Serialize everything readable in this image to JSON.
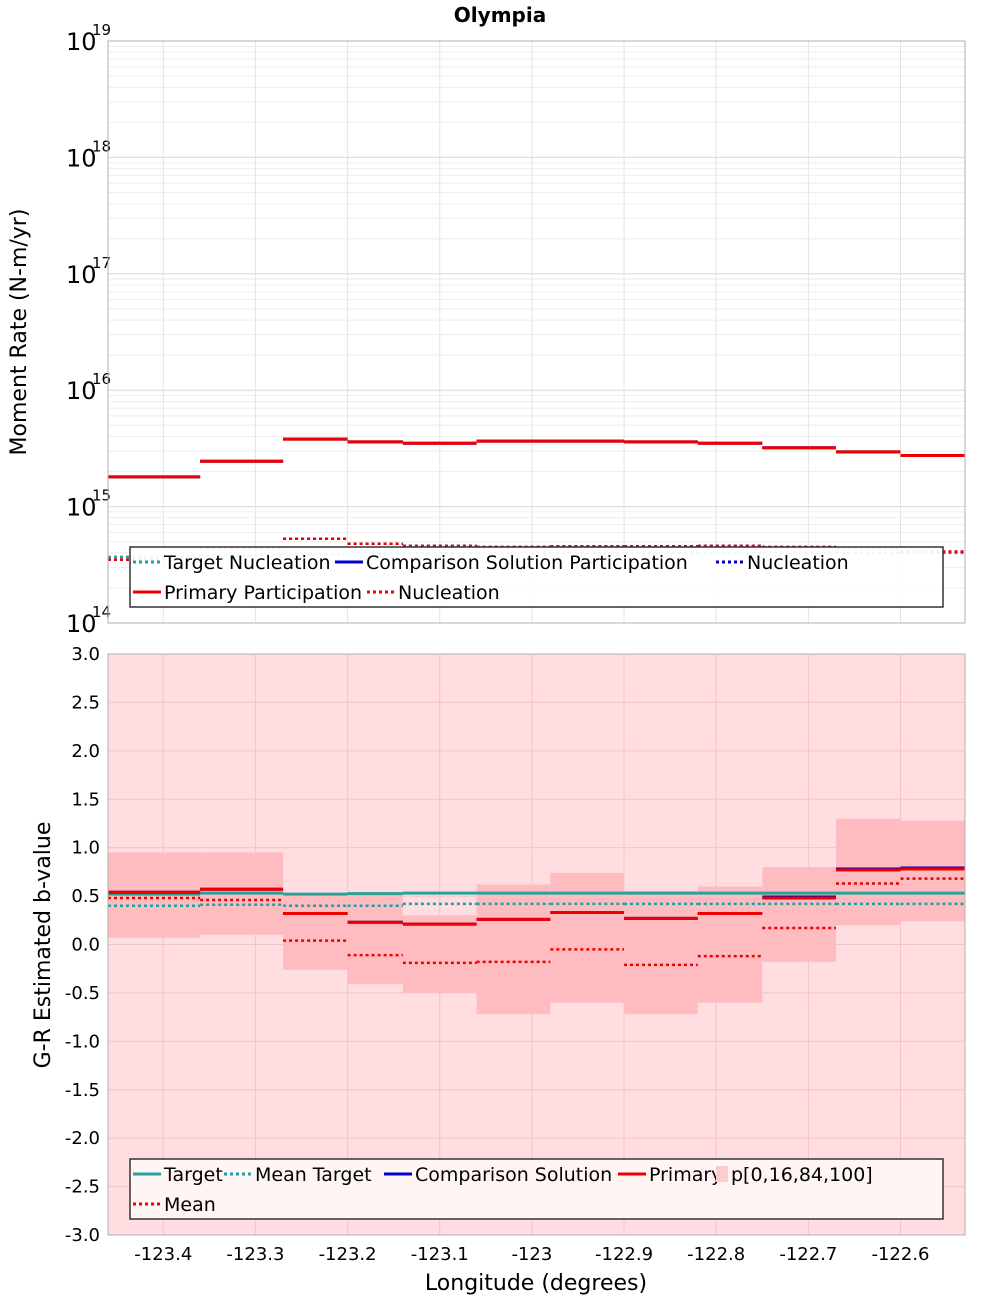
{
  "chart_data": [
    {
      "type": "line",
      "title": "Olympia",
      "ylabel": "Moment Rate (N-m/yr)",
      "yscale": "log",
      "ylim": [
        100000000000000.0,
        1e+19
      ],
      "ytick_base": "10",
      "ytick_exponents": [
        "14",
        "15",
        "16",
        "17",
        "18",
        "19"
      ],
      "grid": true,
      "legend_placement": "bottom",
      "x_edges": [
        -123.46,
        -123.36,
        -123.27,
        -123.2,
        -123.14,
        -123.06,
        -122.98,
        -122.9,
        -122.82,
        -122.75,
        -122.67,
        -122.6,
        -122.53
      ],
      "series": [
        {
          "name": "Target Nucleation",
          "style": "dotted",
          "color": "#1aa3a3",
          "values": [
            370000000000000.0,
            380000000000000.0,
            390000000000000.0,
            400000000000000.0,
            400000000000000.0,
            400000000000000.0,
            400000000000000.0,
            400000000000000.0,
            400000000000000.0,
            400000000000000.0,
            400000000000000.0,
            400000000000000.0
          ]
        },
        {
          "name": "Comparison Solution Participation",
          "style": "solid",
          "color": "#0000cc",
          "values": [
            1800000000000000.0,
            2450000000000000.0,
            3800000000000000.0,
            3600000000000000.0,
            3500000000000000.0,
            3650000000000000.0,
            3650000000000000.0,
            3600000000000000.0,
            3500000000000000.0,
            3200000000000000.0,
            2950000000000000.0,
            2750000000000000.0
          ]
        },
        {
          "name": "Nucleation",
          "style": "dotted",
          "color": "#0000cc",
          "values": [
            350000000000000.0,
            440000000000000.0,
            530000000000000.0,
            480000000000000.0,
            460000000000000.0,
            450000000000000.0,
            455000000000000.0,
            455000000000000.0,
            460000000000000.0,
            450000000000000.0,
            440000000000000.0,
            410000000000000.0
          ]
        },
        {
          "name": "Primary Participation",
          "style": "solid",
          "color": "#ee0000",
          "values": [
            1800000000000000.0,
            2450000000000000.0,
            3800000000000000.0,
            3600000000000000.0,
            3500000000000000.0,
            3650000000000000.0,
            3650000000000000.0,
            3600000000000000.0,
            3500000000000000.0,
            3200000000000000.0,
            2950000000000000.0,
            2750000000000000.0
          ]
        },
        {
          "name": "Nucleation",
          "style": "dotted",
          "color": "#ee0000",
          "values": [
            350000000000000.0,
            440000000000000.0,
            530000000000000.0,
            480000000000000.0,
            460000000000000.0,
            450000000000000.0,
            455000000000000.0,
            455000000000000.0,
            460000000000000.0,
            450000000000000.0,
            440000000000000.0,
            410000000000000.0
          ]
        }
      ]
    },
    {
      "type": "line",
      "xlabel": "Longitude (degrees)",
      "ylabel": "G-R Estimated b-value",
      "ylim": [
        -3.0,
        3.0
      ],
      "xlim": [
        -123.46,
        -122.53
      ],
      "xticks": [
        "-123.4",
        "-123.3",
        "-123.2",
        "-123.1",
        "-123",
        "-122.9",
        "-122.8",
        "-122.7",
        "-122.6"
      ],
      "xtick_values": [
        -123.4,
        -123.3,
        -123.2,
        -123.1,
        -123.0,
        -122.9,
        -122.8,
        -122.7,
        -122.6
      ],
      "yticks": [
        "3.0",
        "2.5",
        "2.0",
        "1.5",
        "1.0",
        "0.5",
        "0.0",
        "-0.5",
        "-1.0",
        "-1.5",
        "-2.0",
        "-2.5",
        "-3.0"
      ],
      "grid": true,
      "legend_placement": "bottom",
      "x_edges": [
        -123.46,
        -123.36,
        -123.27,
        -123.2,
        -123.14,
        -123.06,
        -122.98,
        -122.9,
        -122.82,
        -122.75,
        -122.67,
        -122.6,
        -122.53
      ],
      "band_outer": {
        "low": [
          -3.0,
          -3.0,
          -3.0,
          -3.0,
          -3.0,
          -3.0,
          -3.0,
          -3.0,
          -3.0,
          -3.0,
          -3.0,
          -3.0
        ],
        "high": [
          3.0,
          3.0,
          3.0,
          3.0,
          3.0,
          3.0,
          3.0,
          3.0,
          3.0,
          3.0,
          3.0,
          3.0
        ]
      },
      "band_inner": {
        "low": [
          0.07,
          0.1,
          -0.26,
          -0.41,
          -0.5,
          -0.72,
          -0.6,
          -0.72,
          -0.6,
          -0.18,
          0.2,
          0.24
        ],
        "high": [
          0.95,
          0.95,
          0.5,
          0.52,
          0.3,
          0.62,
          0.74,
          0.55,
          0.6,
          0.8,
          1.3,
          1.28
        ]
      },
      "series": [
        {
          "name": "Target",
          "style": "solid",
          "color": "#2aa198",
          "values": [
            0.52,
            0.53,
            0.52,
            0.525,
            0.53,
            0.53,
            0.53,
            0.53,
            0.53,
            0.53,
            0.53,
            0.53
          ]
        },
        {
          "name": "Mean Target",
          "style": "dotted",
          "color": "#1aa3a3",
          "values": [
            0.4,
            0.41,
            0.4,
            0.4,
            0.42,
            0.42,
            0.42,
            0.42,
            0.42,
            0.42,
            0.42,
            0.42
          ]
        },
        {
          "name": "Comparison Solution",
          "style": "solid",
          "color": "#0000cc",
          "values": [
            0.54,
            0.57,
            0.32,
            0.23,
            0.21,
            0.26,
            0.33,
            0.27,
            0.32,
            0.49,
            0.78,
            0.79
          ]
        },
        {
          "name": "Primary",
          "style": "solid",
          "color": "#ee0000",
          "values": [
            0.54,
            0.57,
            0.32,
            0.23,
            0.21,
            0.26,
            0.33,
            0.27,
            0.32,
            0.48,
            0.77,
            0.78
          ]
        },
        {
          "name": "Mean",
          "style": "dotted",
          "color": "#ee0000",
          "values": [
            0.48,
            0.46,
            0.04,
            -0.11,
            -0.19,
            -0.18,
            -0.05,
            -0.21,
            -0.12,
            0.17,
            0.63,
            0.68
          ]
        }
      ],
      "band_label": "p[0,16,84,100]"
    }
  ],
  "legend_top": [
    {
      "label": "Target Nucleation",
      "color": "#1aa3a3",
      "style": "dotted"
    },
    {
      "label": "Comparison Solution Participation",
      "color": "#0000cc",
      "style": "solid"
    },
    {
      "label": "Nucleation",
      "color": "#0000cc",
      "style": "dotted"
    },
    {
      "label": "Primary Participation",
      "color": "#ee0000",
      "style": "solid"
    },
    {
      "label": "Nucleation",
      "color": "#ee0000",
      "style": "dotted"
    }
  ],
  "legend_bottom": [
    {
      "label": "Target",
      "color": "#2aa198",
      "style": "solid"
    },
    {
      "label": "Mean Target",
      "color": "#1aa3a3",
      "style": "dotted"
    },
    {
      "label": "Comparison Solution",
      "color": "#0000cc",
      "style": "solid"
    },
    {
      "label": "Primary",
      "color": "#ee0000",
      "style": "solid"
    },
    {
      "label": "p[0,16,84,100]",
      "color": "#ffcccc",
      "style": "box"
    },
    {
      "label": "Mean",
      "color": "#ee0000",
      "style": "dotted"
    }
  ]
}
